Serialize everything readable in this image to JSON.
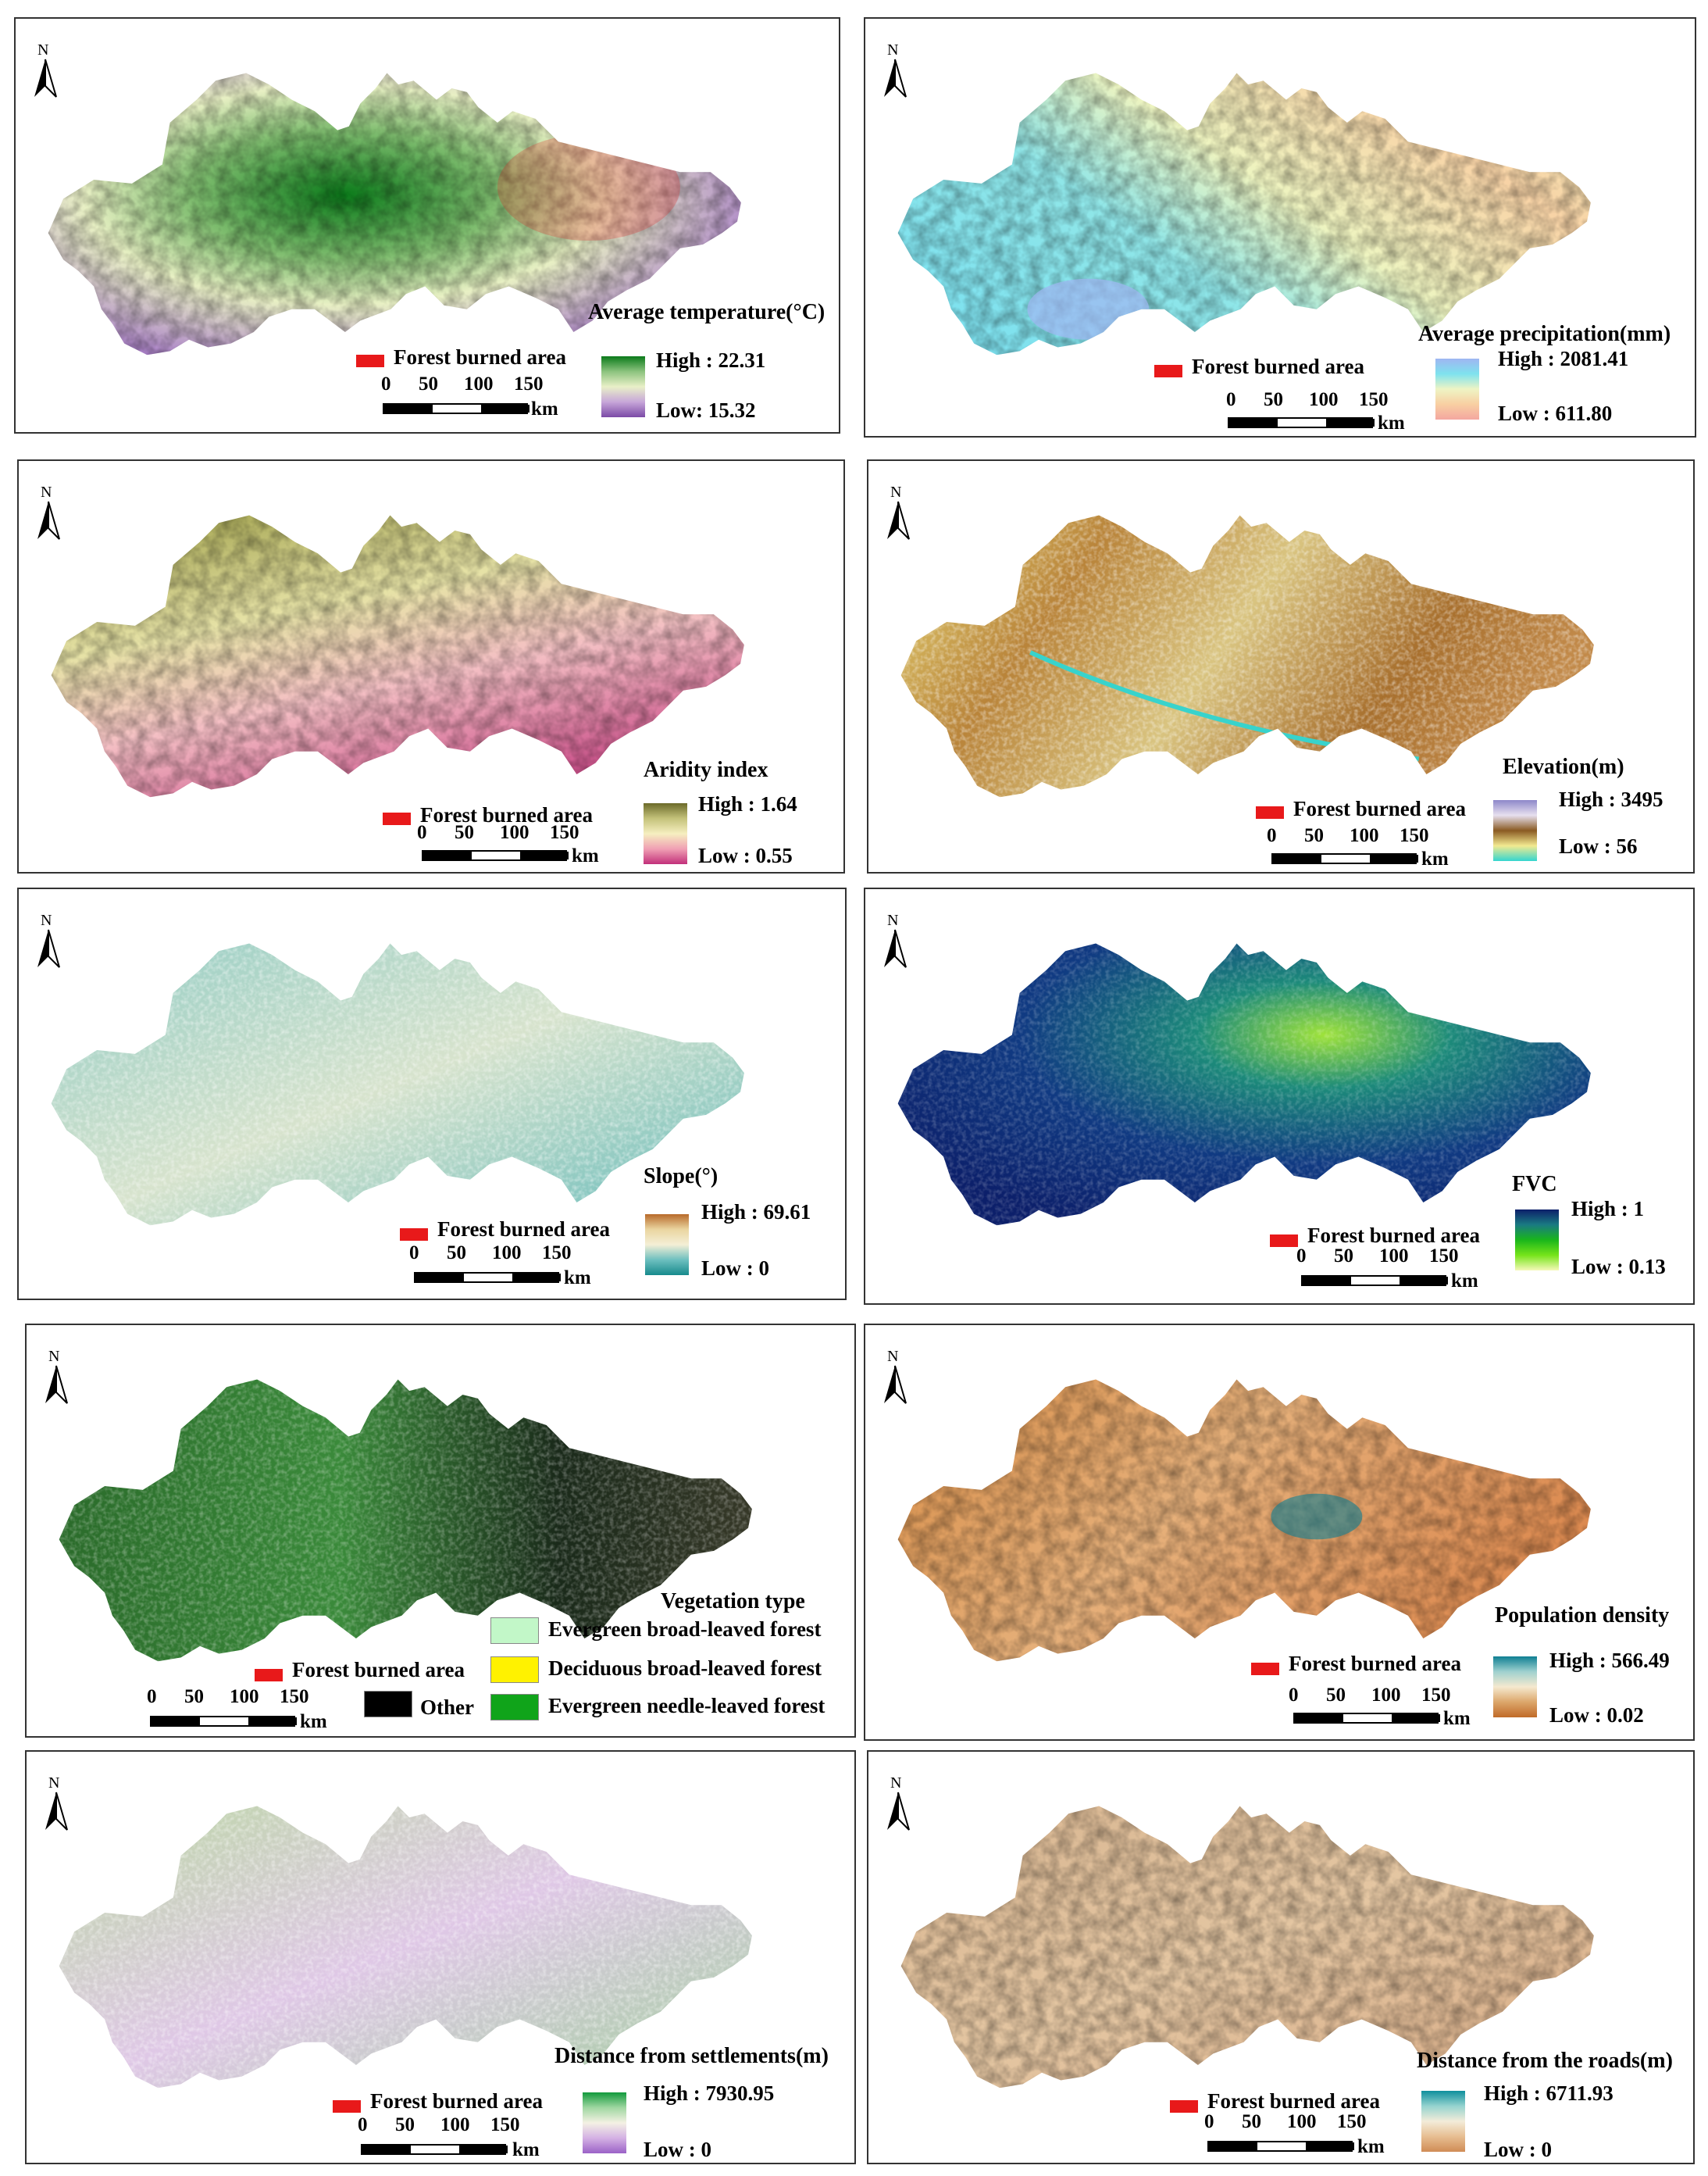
{
  "north_label": "N",
  "burned_label": "Forest burned area",
  "scale": {
    "t0": "0",
    "t1": "50",
    "t2": "100",
    "t3": "150",
    "unit": "km"
  },
  "panels": [
    {
      "title": "Average temperature(°C)",
      "high": "High : 22.31",
      "low": "Low: 15.32",
      "ramp": [
        "#0b7a1a",
        "#8cc37e",
        "#e9f0c8",
        "#c7a6d9",
        "#7b4aa6"
      ]
    },
    {
      "title": "Average precipitation(mm)",
      "high": "High : 2081.41",
      "low": "Low : 611.80",
      "ramp": [
        "#9fb6f2",
        "#7ee2ee",
        "#eef4c4",
        "#f8cfa2",
        "#f4a7a0"
      ]
    },
    {
      "title": "Aridity index",
      "high": "High : 1.64",
      "low": "Low : 0.55",
      "ramp": [
        "#6b6a2a",
        "#c4c27a",
        "#f6efc0",
        "#f0a0b4",
        "#c2307a"
      ]
    },
    {
      "title": "Elevation(m)",
      "high": "High : 3495",
      "low": "Low : 56",
      "ramp": [
        "#8d87c9",
        "#e7e0ef",
        "#8a5a22",
        "#f3ea90",
        "#34d6d0"
      ]
    },
    {
      "title": "Slope(°)",
      "high": "High : 69.61",
      "low": "Low : 0",
      "ramp": [
        "#b86a2a",
        "#ead5a0",
        "#f4efd6",
        "#6dbfbf",
        "#178a8c"
      ]
    },
    {
      "title": "FVC",
      "high": "High : 1",
      "low": "Low : 0.13",
      "ramp": [
        "#0c1f6a",
        "#1a7a82",
        "#19b61b",
        "#76e41a",
        "#f6f9b8"
      ]
    },
    {
      "title": "Population density",
      "high": "High : 566.49",
      "low": "Low : 0.02",
      "ramp": [
        "#0f7f93",
        "#9fd1cf",
        "#f5e9cf",
        "#dca66a",
        "#c06a28"
      ]
    },
    {
      "title": "Distance from settlements(m)",
      "high": "High : 7930.95",
      "low": "Low : 0",
      "ramp": [
        "#129a3c",
        "#9fd7a1",
        "#f4f1e4",
        "#d4b1e4",
        "#9b62c7"
      ]
    },
    {
      "title": "Distance from the roads(m)",
      "high": "High : 6711.93",
      "low": "Low : 0",
      "ramp": [
        "#0f8f9d",
        "#95d3cf",
        "#f3ecd9",
        "#e7be92",
        "#d08c55"
      ]
    }
  ],
  "vegetation": {
    "title": "Vegetation type",
    "items": [
      {
        "label": "Evergreen broad-leaved forest",
        "color": "#c2f7c8"
      },
      {
        "label": "Deciduous broad-leaved forest",
        "color": "#fff200"
      },
      {
        "label": "Evergreen needle-leaved forest",
        "color": "#10a41a"
      },
      {
        "label": "Other",
        "color": "#000000"
      }
    ]
  }
}
